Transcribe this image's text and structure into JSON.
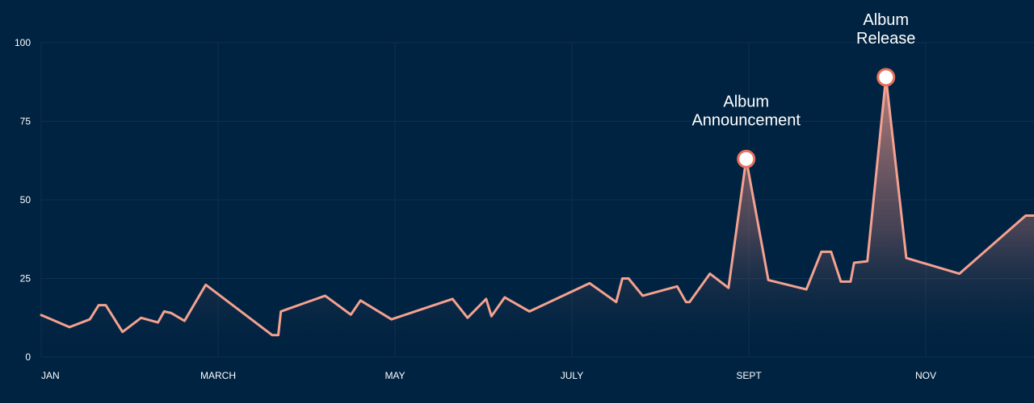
{
  "chart_data": {
    "type": "area",
    "title": "",
    "xlabel": "",
    "ylabel": "",
    "ylim": [
      0,
      100
    ],
    "yticks": [
      "0",
      "25",
      "50",
      "75",
      "100"
    ],
    "xticks": [
      {
        "label": "JAN",
        "x": 0
      },
      {
        "label": "MARCH",
        "x": 2
      },
      {
        "label": "MAY",
        "x": 4
      },
      {
        "label": "JULY",
        "x": 6
      },
      {
        "label": "SEPT",
        "x": 8
      },
      {
        "label": "NOV",
        "x": 10
      }
    ],
    "grid": true,
    "colors": {
      "background": "#002341",
      "line": "#F5A190",
      "grid": "#0F2F4E",
      "marker_fill": "#FFFFFF",
      "marker_stroke": "#E8705C"
    },
    "series": [
      {
        "values": [
          [
            0.03,
            13
          ],
          [
            0.32,
            9.5
          ],
          [
            0.55,
            12
          ],
          [
            0.65,
            16.5
          ],
          [
            0.73,
            16.5
          ],
          [
            0.92,
            8
          ],
          [
            1.13,
            12.5
          ],
          [
            1.32,
            11
          ],
          [
            1.39,
            14.5
          ],
          [
            1.47,
            14
          ],
          [
            1.62,
            11.5
          ],
          [
            1.86,
            23
          ],
          [
            2.61,
            7
          ],
          [
            2.68,
            7
          ],
          [
            2.71,
            14.5
          ],
          [
            3.21,
            19.5
          ],
          [
            3.5,
            13.5
          ],
          [
            3.61,
            18
          ],
          [
            3.96,
            12
          ],
          [
            4.65,
            18.5
          ],
          [
            4.82,
            12.5
          ],
          [
            5.03,
            18.5
          ],
          [
            5.09,
            13
          ],
          [
            5.24,
            19
          ],
          [
            5.52,
            14.5
          ],
          [
            6.2,
            23.5
          ],
          [
            6.5,
            17.5
          ],
          [
            6.57,
            25
          ],
          [
            6.64,
            25
          ],
          [
            6.8,
            19.5
          ],
          [
            7.19,
            22.5
          ],
          [
            7.29,
            17.5
          ],
          [
            7.33,
            17.5
          ],
          [
            7.56,
            26.5
          ],
          [
            7.77,
            22
          ],
          [
            7.97,
            63
          ],
          [
            8.22,
            24.5
          ],
          [
            8.65,
            21.5
          ],
          [
            8.82,
            33.5
          ],
          [
            8.93,
            33.5
          ],
          [
            9.04,
            24
          ],
          [
            9.15,
            24
          ],
          [
            9.19,
            30
          ],
          [
            9.34,
            30.5
          ],
          [
            9.55,
            89
          ],
          [
            9.78,
            31.5
          ],
          [
            10.38,
            26.5
          ],
          [
            11.13,
            45
          ]
        ]
      }
    ],
    "annotations": [
      {
        "lines": [
          "Album",
          "Announcement"
        ],
        "x": 7.97,
        "y": 63
      },
      {
        "lines": [
          "Album",
          "Release"
        ],
        "x": 9.55,
        "y": 89
      }
    ]
  }
}
